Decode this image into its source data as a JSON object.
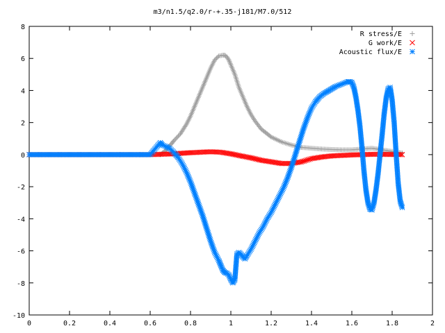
{
  "chart_data": {
    "type": "scatter",
    "title": "m3/n1.5/q2.0/r-+.35-j181/M7.0/512",
    "xlabel": "",
    "ylabel": "",
    "xlim": [
      0,
      2
    ],
    "ylim": [
      -10,
      8
    ],
    "grid": false,
    "legend_position": "top-right",
    "x_ticks": [
      0,
      0.2,
      0.4,
      0.6,
      0.8,
      1,
      1.2,
      1.4,
      1.6,
      1.8,
      2
    ],
    "x_tick_labels": [
      "0",
      "0.2",
      "0.4",
      "0.6",
      "0.8",
      "1",
      "1.2",
      "1.4",
      "1.6",
      "1.8",
      "2"
    ],
    "y_ticks": [
      -10,
      -8,
      -6,
      -4,
      -2,
      0,
      2,
      4,
      6,
      8
    ],
    "y_tick_labels": [
      "-10",
      "-8",
      "-6",
      "-4",
      "-2",
      "0",
      "2",
      "4",
      "6",
      "8"
    ],
    "series": [
      {
        "name": "R stress/E",
        "marker": "plus",
        "color": "#a0a0a0",
        "x": [
          0.65,
          0.68,
          0.7,
          0.72,
          0.75,
          0.78,
          0.8,
          0.82,
          0.85,
          0.88,
          0.9,
          0.92,
          0.94,
          0.96,
          0.97,
          0.98,
          0.99,
          1.0,
          1.02,
          1.04,
          1.06,
          1.08,
          1.1,
          1.12,
          1.15,
          1.18,
          1.2,
          1.25,
          1.3,
          1.35,
          1.4,
          1.45,
          1.5,
          1.55,
          1.6,
          1.65,
          1.7,
          1.75,
          1.8,
          1.85
        ],
        "y": [
          0.0,
          0.3,
          0.6,
          0.9,
          1.3,
          1.9,
          2.4,
          3.0,
          3.9,
          4.8,
          5.4,
          5.9,
          6.15,
          6.2,
          6.2,
          6.1,
          5.9,
          5.6,
          5.0,
          4.2,
          3.6,
          3.0,
          2.5,
          2.1,
          1.6,
          1.3,
          1.1,
          0.8,
          0.6,
          0.45,
          0.4,
          0.35,
          0.32,
          0.3,
          0.3,
          0.35,
          0.4,
          0.3,
          0.2,
          0.1
        ]
      },
      {
        "name": "G work/E",
        "marker": "cross",
        "color": "#ff0000",
        "x": [
          0.0,
          0.1,
          0.2,
          0.3,
          0.4,
          0.5,
          0.6,
          0.65,
          0.7,
          0.75,
          0.8,
          0.85,
          0.9,
          0.95,
          1.0,
          1.05,
          1.1,
          1.15,
          1.2,
          1.25,
          1.3,
          1.35,
          1.4,
          1.45,
          1.5,
          1.55,
          1.6,
          1.65,
          1.7,
          1.75,
          1.8,
          1.85
        ],
        "y": [
          0,
          0,
          0,
          0,
          0,
          0,
          0,
          0.02,
          0.04,
          0.08,
          0.12,
          0.15,
          0.18,
          0.15,
          0.05,
          -0.08,
          -0.2,
          -0.35,
          -0.45,
          -0.55,
          -0.55,
          -0.45,
          -0.25,
          -0.15,
          -0.08,
          -0.05,
          -0.02,
          0,
          0.02,
          0.02,
          0.01,
          0.0
        ]
      },
      {
        "name": "Acoustic flux/E",
        "marker": "star",
        "color": "#0080ff",
        "x": [
          0.0,
          0.1,
          0.2,
          0.3,
          0.4,
          0.5,
          0.6,
          0.65,
          0.66,
          0.68,
          0.7,
          0.72,
          0.74,
          0.76,
          0.78,
          0.8,
          0.82,
          0.84,
          0.86,
          0.88,
          0.9,
          0.92,
          0.94,
          0.95,
          0.96,
          0.97,
          0.98,
          0.99,
          1.0,
          1.01,
          1.02,
          1.03,
          1.04,
          1.05,
          1.06,
          1.07,
          1.08,
          1.1,
          1.12,
          1.14,
          1.16,
          1.18,
          1.2,
          1.22,
          1.24,
          1.26,
          1.28,
          1.3,
          1.32,
          1.34,
          1.36,
          1.38,
          1.4,
          1.42,
          1.44,
          1.46,
          1.48,
          1.5,
          1.52,
          1.54,
          1.56,
          1.58,
          1.59,
          1.6,
          1.61,
          1.62,
          1.63,
          1.64,
          1.65,
          1.66,
          1.67,
          1.68,
          1.69,
          1.7,
          1.71,
          1.72,
          1.73,
          1.74,
          1.75,
          1.76,
          1.77,
          1.78,
          1.79,
          1.8,
          1.81,
          1.82,
          1.83,
          1.84,
          1.85
        ],
        "y": [
          0,
          0,
          0,
          0,
          0,
          0,
          0,
          0.75,
          0.6,
          0.5,
          0.35,
          0.1,
          -0.2,
          -0.6,
          -1.1,
          -1.7,
          -2.4,
          -3.1,
          -3.8,
          -4.6,
          -5.4,
          -6.1,
          -6.6,
          -6.9,
          -7.2,
          -7.35,
          -7.4,
          -7.5,
          -7.8,
          -8.0,
          -7.8,
          -6.2,
          -6.1,
          -6.2,
          -6.4,
          -6.5,
          -6.3,
          -5.9,
          -5.4,
          -4.9,
          -4.5,
          -4.0,
          -3.6,
          -3.1,
          -2.6,
          -2.1,
          -1.5,
          -0.8,
          0.0,
          0.8,
          1.6,
          2.3,
          2.9,
          3.3,
          3.6,
          3.8,
          3.95,
          4.1,
          4.25,
          4.35,
          4.45,
          4.55,
          4.55,
          4.5,
          4.2,
          3.6,
          2.8,
          1.8,
          0.5,
          -1.0,
          -2.2,
          -3.0,
          -3.4,
          -3.45,
          -3.0,
          -2.2,
          -1.2,
          0.0,
          1.2,
          2.5,
          3.5,
          4.1,
          4.2,
          3.4,
          2.0,
          0.0,
          -1.8,
          -2.9,
          -3.3
        ]
      }
    ]
  }
}
